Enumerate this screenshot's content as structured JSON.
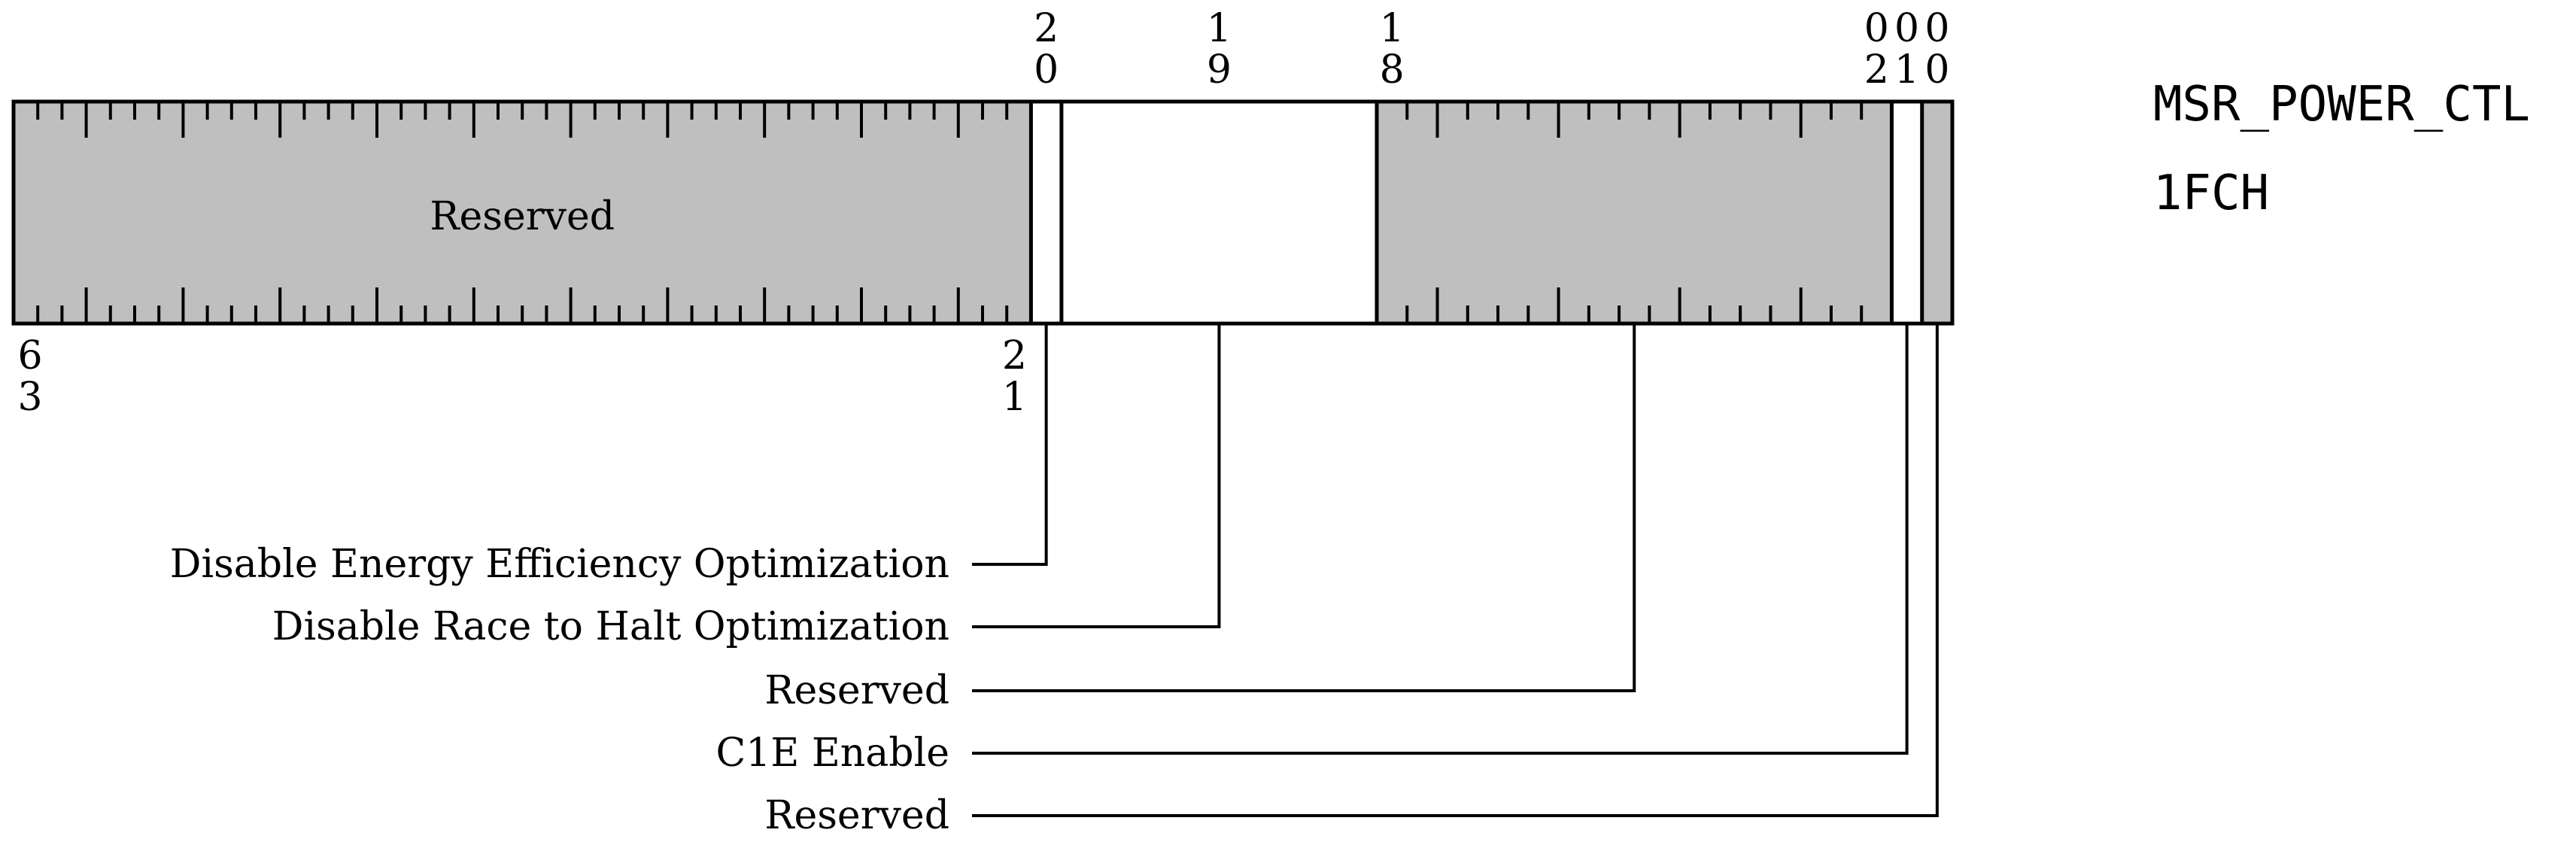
{
  "register": {
    "name": "MSR_POWER_CTL",
    "address": "1FCH",
    "width_bits": 64
  },
  "bit_labels": {
    "top": [
      {
        "bit": 20,
        "digits": [
          "2",
          "0"
        ]
      },
      {
        "bit": 19,
        "digits": [
          "1",
          "9"
        ]
      },
      {
        "bit": 18,
        "digits": [
          "1",
          "8"
        ]
      },
      {
        "bit": 2,
        "digits": [
          "0",
          "2"
        ]
      },
      {
        "bit": 1,
        "digits": [
          "0",
          "1"
        ]
      },
      {
        "bit": 0,
        "digits": [
          "0",
          "0"
        ]
      }
    ],
    "bottom": [
      {
        "bit": 63,
        "digits": [
          "6",
          "3"
        ]
      },
      {
        "bit": 21,
        "digits": [
          "2",
          "1"
        ]
      }
    ]
  },
  "fields": [
    {
      "id": "reserved-high",
      "label": "Reserved",
      "label_inside": true,
      "high": 63,
      "low": 21,
      "reserved": true
    },
    {
      "id": "disable-eeo",
      "label": "Disable Energy Efficiency Optimization",
      "label_inside": false,
      "high": 20,
      "low": 20,
      "reserved": false
    },
    {
      "id": "disable-rth",
      "label": "Disable Race to Halt Optimization",
      "label_inside": false,
      "high": 19,
      "low": 19,
      "reserved": false
    },
    {
      "id": "reserved-mid",
      "label": "Reserved",
      "label_inside": false,
      "high": 18,
      "low": 2,
      "reserved": true
    },
    {
      "id": "c1e-enable",
      "label": "C1E Enable",
      "label_inside": false,
      "high": 1,
      "low": 1,
      "reserved": false
    },
    {
      "id": "reserved-low",
      "label": "Reserved",
      "label_inside": false,
      "high": 0,
      "low": 0,
      "reserved": true
    }
  ],
  "colors": {
    "reserved_fill": "#bfbfbf",
    "field_fill": "#ffffff",
    "stroke": "#000000",
    "text": "#000000"
  }
}
